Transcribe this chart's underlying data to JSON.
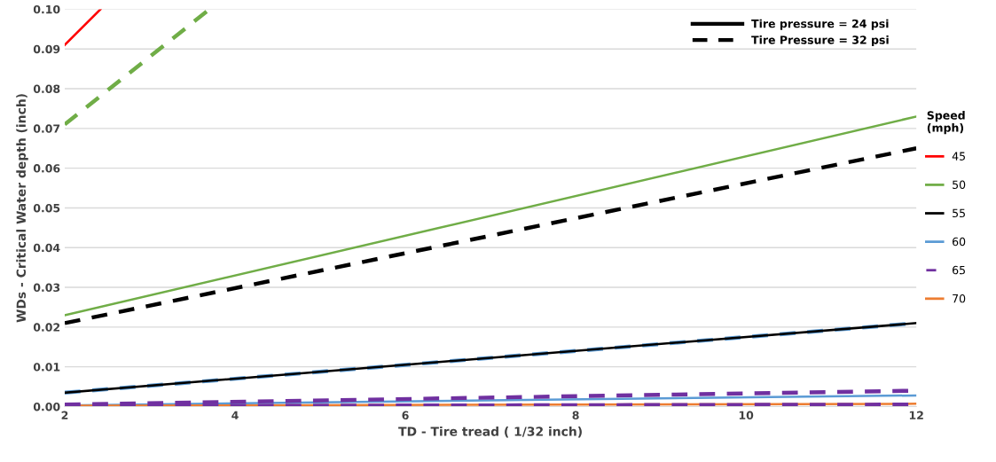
{
  "chart_data": {
    "type": "line",
    "xlabel": "TD - Tire tread ( 1/32 inch)",
    "ylabel": "WDs - Critical Water depth (inch)",
    "legend_title": "Speed\n(mph)",
    "legend": "right",
    "grid": "y",
    "marker": "none",
    "xlim": [
      2,
      12
    ],
    "xticks": [
      2,
      4,
      6,
      8,
      10,
      12
    ],
    "ylim": [
      0,
      0.1
    ],
    "yticks": [
      {
        "value": 0,
        "label": "0.00"
      },
      {
        "value": 0.01,
        "label": "0.01"
      },
      {
        "value": 0.02,
        "label": "0.02"
      },
      {
        "value": 0.03,
        "label": "0.03"
      },
      {
        "value": 0.04,
        "label": "0.04"
      },
      {
        "value": 0.05,
        "label": "0.05"
      },
      {
        "value": 0.06,
        "label": "0.06"
      },
      {
        "value": 0.07,
        "label": "0.07"
      },
      {
        "value": 0.08,
        "label": "0.08"
      },
      {
        "value": 0.09,
        "label": "0.09"
      },
      {
        "value": 0.1,
        "label": "0.10"
      }
    ],
    "annotations": [
      "Tire pressure = 24 psi",
      "Tire Pressure = 32 psi"
    ],
    "series": [
      {
        "name": "45",
        "color": "#ff0000",
        "line_style": "solid",
        "x": [
          2,
          2.42
        ],
        "values": [
          0.091,
          0.1
        ]
      },
      {
        "name": "50",
        "color": "#70ad47",
        "line_style": "solid",
        "x": [
          2,
          12
        ],
        "values": [
          0.023,
          0.073
        ]
      },
      {
        "color": "#70ad47",
        "line_style": "dashed",
        "x": [
          2,
          3.7
        ],
        "values": [
          0.071,
          0.1
        ]
      },
      {
        "color": "#000000",
        "line_style": "dashed",
        "x": [
          2,
          12
        ],
        "values": [
          0.021,
          0.065
        ]
      },
      {
        "color": "#5b9bd5",
        "line_style": "dashed",
        "x": [
          2,
          12
        ],
        "values": [
          0.0035,
          0.021
        ]
      },
      {
        "name": "55",
        "color": "#000000",
        "line_style": "solid",
        "x": [
          2,
          12
        ],
        "values": [
          0.0035,
          0.021
        ]
      },
      {
        "name": "60",
        "color": "#5b9bd5",
        "line_style": "solid",
        "x": [
          2,
          12
        ],
        "values": [
          0.0003,
          0.0028
        ]
      },
      {
        "name": "65",
        "color": "#7030a0",
        "line_style": "dashed",
        "x": [
          2,
          12
        ],
        "values": [
          0.0005,
          0.004
        ]
      },
      {
        "name": "70",
        "color": "#ed7d31",
        "line_style": "solid",
        "x": [
          2,
          12
        ],
        "values": [
          0.0002,
          0.0007
        ]
      },
      {
        "color": "#7030a0",
        "line_style": "dashed",
        "x": [
          2,
          12
        ],
        "values": [
          0.0001,
          0.0005
        ]
      }
    ]
  }
}
